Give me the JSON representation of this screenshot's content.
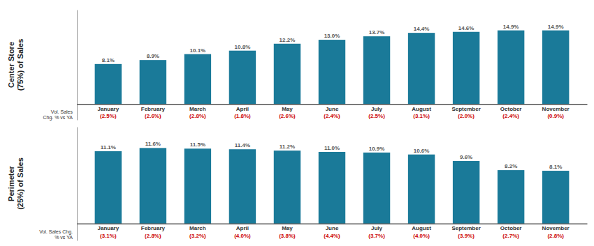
{
  "chart_data": [
    {
      "type": "bar",
      "title": "Center Store\n(75%) of Sales",
      "categories": [
        "January",
        "February",
        "March",
        "April",
        "May",
        "June",
        "July",
        "August",
        "September",
        "October",
        "November"
      ],
      "values": [
        8.1,
        8.9,
        10.1,
        10.8,
        12.2,
        13.0,
        13.7,
        14.4,
        14.6,
        14.9,
        14.9
      ],
      "value_labels": [
        "8.1%",
        "8.9%",
        "10.1%",
        "10.8%",
        "12.2%",
        "13.0%",
        "13.7%",
        "14.4%",
        "14.6%",
        "14.9%",
        "14.9%"
      ],
      "data_labels": true,
      "color": "#1a7a99",
      "ylim": [
        -3.2,
        19.072
      ],
      "yticks": [],
      "tick_labels": "x",
      "grid": false,
      "annotations": {
        "label": "Vol. Sales\nChg. % vs YA",
        "color": "#cc0000",
        "texts": [
          "(2.5%)",
          "(2.6%)",
          "(2.8%)",
          "(1.8%)",
          "(2.6%)",
          "(2.4%)",
          "(2.5%)",
          "(3.1%)",
          "(2.0%)",
          "(2.4%)",
          "(0.9%)"
        ]
      }
    },
    {
      "type": "bar",
      "title": "Perimeter\n(25%) of Sales",
      "categories": [
        "January",
        "February",
        "March",
        "April",
        "May",
        "June",
        "July",
        "August",
        "September",
        "October",
        "November"
      ],
      "values": [
        11.1,
        11.6,
        11.5,
        11.4,
        11.2,
        11.0,
        10.9,
        10.6,
        9.6,
        8.2,
        8.1
      ],
      "value_labels": [
        "11.1%",
        "11.6%",
        "11.5%",
        "11.4%",
        "11.2%",
        "11.0%",
        "10.9%",
        "10.6%",
        "9.6%",
        "8.2%",
        "8.1%"
      ],
      "data_labels": true,
      "color": "#1a7a99",
      "ylim": [
        -2.6,
        14.848
      ],
      "yticks": [],
      "tick_labels": "x",
      "grid": false,
      "annotations": {
        "label": "Vol. Sales Chg.\n% vs YA",
        "color": "#cc0000",
        "texts": [
          "(3.1%)",
          "(2.8%)",
          "(3.2%)",
          "(4.0%)",
          "(3.8%)",
          "(4.4%)",
          "(3.7%)",
          "(4.0%)",
          "(3.9%)",
          "(2.7%)",
          "(2.8%)"
        ]
      }
    }
  ]
}
